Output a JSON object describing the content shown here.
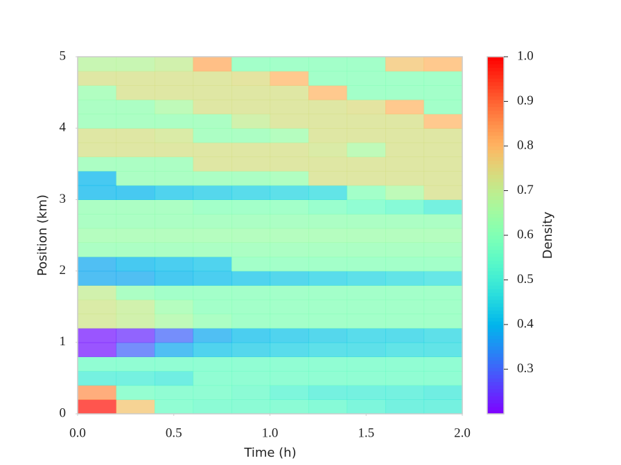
{
  "chart_data": {
    "type": "heatmap",
    "xlabel": "Time (h)",
    "ylabel": "Position (km)",
    "colorbar_label": "Density",
    "colormap": "rainbow",
    "clim": [
      0.2,
      1.0
    ],
    "xlim": [
      0,
      2
    ],
    "ylim": [
      0,
      5
    ],
    "xticks": [
      {
        "value": 0,
        "label": "0.0"
      },
      0.5,
      {
        "value": 1,
        "label": "1.0"
      },
      1.5,
      {
        "value": 2,
        "label": "2.0"
      }
    ],
    "yticks": [
      0,
      1,
      2,
      3,
      4,
      5
    ],
    "cticks": [
      0.3,
      0.4,
      0.5,
      0.6,
      0.7,
      0.8,
      0.9,
      {
        "value": 1,
        "label": "1.0"
      }
    ],
    "values": [
      [
        0.98,
        0.78,
        0.56,
        0.55,
        0.55,
        0.55,
        0.54,
        0.52,
        0.5,
        0.5
      ],
      [
        0.85,
        0.57,
        0.56,
        0.56,
        0.55,
        0.52,
        0.5,
        0.5,
        0.5,
        0.49
      ],
      [
        0.5,
        0.5,
        0.49,
        0.56,
        0.56,
        0.56,
        0.56,
        0.56,
        0.56,
        0.56
      ],
      [
        0.56,
        0.56,
        0.56,
        0.56,
        0.56,
        0.56,
        0.56,
        0.56,
        0.56,
        0.56
      ],
      [
        0.22,
        0.3,
        0.38,
        0.42,
        0.43,
        0.44,
        0.45,
        0.45,
        0.46,
        0.46
      ],
      [
        0.22,
        0.24,
        0.3,
        0.38,
        0.41,
        0.42,
        0.43,
        0.44,
        0.44,
        0.45
      ],
      [
        0.72,
        0.7,
        0.66,
        0.62,
        0.6,
        0.6,
        0.6,
        0.6,
        0.6,
        0.6
      ],
      [
        0.72,
        0.7,
        0.64,
        0.6,
        0.6,
        0.6,
        0.6,
        0.6,
        0.6,
        0.6
      ],
      [
        0.7,
        0.62,
        0.6,
        0.6,
        0.6,
        0.6,
        0.6,
        0.6,
        0.6,
        0.6
      ],
      [
        0.38,
        0.38,
        0.4,
        0.41,
        0.42,
        0.43,
        0.44,
        0.45,
        0.46,
        0.47
      ],
      [
        0.38,
        0.4,
        0.41,
        0.42,
        0.6,
        0.6,
        0.6,
        0.6,
        0.6,
        0.6
      ],
      [
        0.62,
        0.62,
        0.62,
        0.62,
        0.62,
        0.62,
        0.62,
        0.62,
        0.62,
        0.62
      ],
      [
        0.64,
        0.64,
        0.64,
        0.64,
        0.64,
        0.64,
        0.64,
        0.64,
        0.64,
        0.64
      ],
      [
        0.62,
        0.62,
        0.62,
        0.62,
        0.62,
        0.62,
        0.62,
        0.62,
        0.62,
        0.62
      ],
      [
        0.62,
        0.62,
        0.62,
        0.6,
        0.6,
        0.6,
        0.58,
        0.56,
        0.54,
        0.5
      ],
      [
        0.4,
        0.4,
        0.42,
        0.43,
        0.44,
        0.45,
        0.46,
        0.6,
        0.66,
        0.73
      ],
      [
        0.4,
        0.62,
        0.62,
        0.62,
        0.62,
        0.63,
        0.73,
        0.73,
        0.73,
        0.73
      ],
      [
        0.62,
        0.62,
        0.62,
        0.73,
        0.73,
        0.73,
        0.73,
        0.73,
        0.73,
        0.73
      ],
      [
        0.73,
        0.73,
        0.73,
        0.73,
        0.73,
        0.73,
        0.72,
        0.66,
        0.73,
        0.73
      ],
      [
        0.73,
        0.73,
        0.72,
        0.62,
        0.62,
        0.64,
        0.73,
        0.73,
        0.73,
        0.73
      ],
      [
        0.62,
        0.62,
        0.62,
        0.62,
        0.7,
        0.73,
        0.73,
        0.73,
        0.73,
        0.8
      ],
      [
        0.62,
        0.62,
        0.66,
        0.73,
        0.73,
        0.73,
        0.73,
        0.74,
        0.8,
        0.6
      ],
      [
        0.63,
        0.73,
        0.73,
        0.73,
        0.73,
        0.73,
        0.8,
        0.6,
        0.6,
        0.6
      ],
      [
        0.73,
        0.73,
        0.73,
        0.73,
        0.74,
        0.8,
        0.6,
        0.6,
        0.6,
        0.6
      ],
      [
        0.68,
        0.68,
        0.7,
        0.82,
        0.6,
        0.6,
        0.6,
        0.6,
        0.78,
        0.8
      ]
    ]
  }
}
